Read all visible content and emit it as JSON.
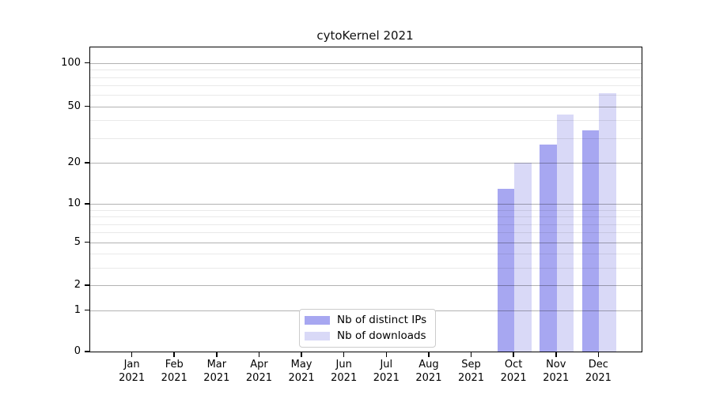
{
  "chart_data": {
    "type": "bar",
    "title": "cytoKernel 2021",
    "categories": [
      "Jan",
      "Feb",
      "Mar",
      "Apr",
      "May",
      "Jun",
      "Jul",
      "Aug",
      "Sep",
      "Oct",
      "Nov",
      "Dec"
    ],
    "year_label": "2021",
    "series": [
      {
        "name": "Nb of distinct IPs",
        "color": "#a7a7f1",
        "values": [
          0,
          0,
          0,
          0,
          0,
          0,
          0,
          0,
          0,
          13,
          27,
          34
        ]
      },
      {
        "name": "Nb of downloads",
        "color": "#d9d9f7",
        "values": [
          0,
          0,
          0,
          0,
          0,
          0,
          0,
          0,
          0,
          20,
          44,
          62
        ]
      }
    ],
    "xlabel": "",
    "ylabel": "",
    "y_major_ticks": [
      0,
      1,
      2,
      5,
      10,
      20,
      50,
      100
    ],
    "y_minor_ticks": [
      3,
      4,
      6,
      7,
      8,
      9,
      30,
      40,
      60,
      70,
      80,
      90
    ],
    "ylim": [
      0,
      128
    ],
    "yscale": "quasi-log (0,1,2,5,10,20,50,100)",
    "grid": true,
    "legend_position": "lower center"
  }
}
